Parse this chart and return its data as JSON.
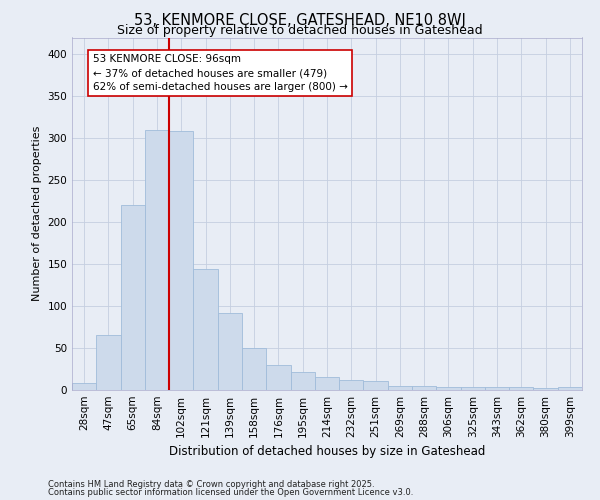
{
  "title1": "53, KENMORE CLOSE, GATESHEAD, NE10 8WJ",
  "title2": "Size of property relative to detached houses in Gateshead",
  "xlabel": "Distribution of detached houses by size in Gateshead",
  "ylabel": "Number of detached properties",
  "categories": [
    "28sqm",
    "47sqm",
    "65sqm",
    "84sqm",
    "102sqm",
    "121sqm",
    "139sqm",
    "158sqm",
    "176sqm",
    "195sqm",
    "214sqm",
    "232sqm",
    "251sqm",
    "269sqm",
    "288sqm",
    "306sqm",
    "325sqm",
    "343sqm",
    "362sqm",
    "380sqm",
    "399sqm"
  ],
  "values": [
    8,
    65,
    220,
    310,
    308,
    144,
    92,
    50,
    30,
    22,
    15,
    12,
    11,
    5,
    5,
    4,
    4,
    3,
    3,
    2,
    4
  ],
  "bar_color": "#cddaeb",
  "bar_edge_color": "#a0bcda",
  "bar_edge_width": 0.6,
  "vline_color": "#cc0000",
  "vline_x_idx": 4,
  "annotation_line1": "53 KENMORE CLOSE: 96sqm",
  "annotation_line2": "← 37% of detached houses are smaller (479)",
  "annotation_line3": "62% of semi-detached houses are larger (800) →",
  "annotation_box_color": "white",
  "annotation_box_edge": "#cc0000",
  "ylim": [
    0,
    420
  ],
  "yticks": [
    0,
    50,
    100,
    150,
    200,
    250,
    300,
    350,
    400
  ],
  "grid_color": "#c5cfe0",
  "bg_color": "#e8edf5",
  "footer1": "Contains HM Land Registry data © Crown copyright and database right 2025.",
  "footer2": "Contains public sector information licensed under the Open Government Licence v3.0.",
  "title1_fontsize": 10.5,
  "title2_fontsize": 9,
  "ylabel_fontsize": 8,
  "xlabel_fontsize": 8.5,
  "tick_fontsize": 7.5,
  "annot_fontsize": 7.5,
  "footer_fontsize": 6.0
}
